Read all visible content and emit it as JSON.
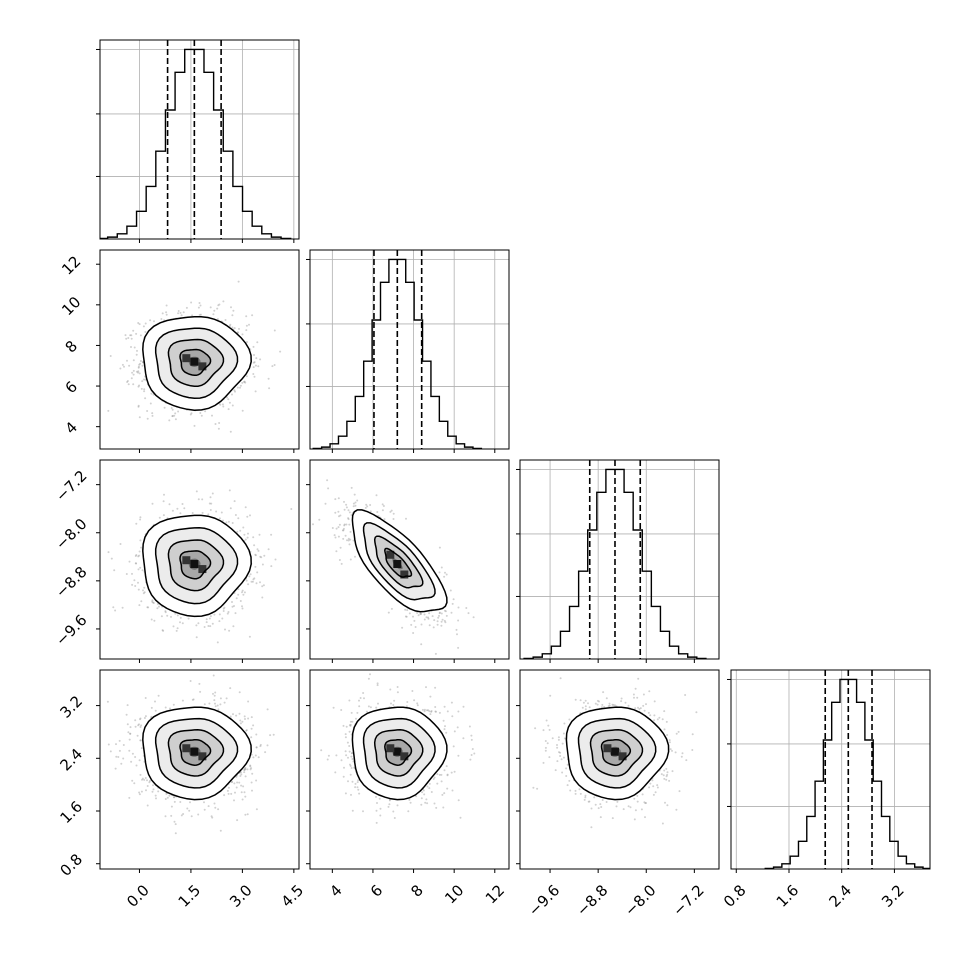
{
  "chart_data": {
    "type": "corner",
    "params": [
      {
        "ticks": [
          "0.0",
          "1.5",
          "3.0",
          "4.5"
        ],
        "tick_values": [
          0.0,
          1.5,
          3.0,
          4.5
        ],
        "range": [
          -1.15,
          4.65
        ],
        "median": 1.6,
        "q16": 0.82,
        "q84": 2.38,
        "sd": 0.78
      },
      {
        "ticks": [
          "4",
          "6",
          "8",
          "10",
          "12"
        ],
        "tick_values": [
          4,
          6,
          8,
          10,
          12
        ],
        "range": [
          2.9,
          12.7
        ],
        "median": 7.2,
        "q16": 6.05,
        "q84": 8.4,
        "sd": 1.15
      },
      {
        "ticks": [
          "−9.6",
          "−8.8",
          "−8.0",
          "−7.2"
        ],
        "tick_values": [
          -9.6,
          -8.8,
          -8.0,
          -7.2
        ],
        "range": [
          -10.1,
          -6.79
        ],
        "median": -8.52,
        "q16": -8.94,
        "q84": -8.1,
        "sd": 0.42
      },
      {
        "ticks": [
          "0.8",
          "1.6",
          "2.4",
          "3.2"
        ],
        "tick_values": [
          0.8,
          1.6,
          2.4,
          3.2
        ],
        "range": [
          0.72,
          3.74
        ],
        "median": 2.5,
        "q16": 2.15,
        "q84": 2.86,
        "sd": 0.35
      }
    ],
    "pairs": [
      {
        "row": 1,
        "col": 0,
        "rho": 0.0
      },
      {
        "row": 2,
        "col": 0,
        "rho": 0.0
      },
      {
        "row": 2,
        "col": 1,
        "rho": -0.72
      },
      {
        "row": 3,
        "col": 0,
        "rho": 0.0
      },
      {
        "row": 3,
        "col": 1,
        "rho": 0.0
      },
      {
        "row": 3,
        "col": 2,
        "rho": 0.0
      }
    ],
    "contour_levels_sigma": [
      0.5,
      1.0,
      1.5,
      2.0
    ],
    "grid": true,
    "title": "",
    "xlabel": "",
    "ylabel": ""
  }
}
